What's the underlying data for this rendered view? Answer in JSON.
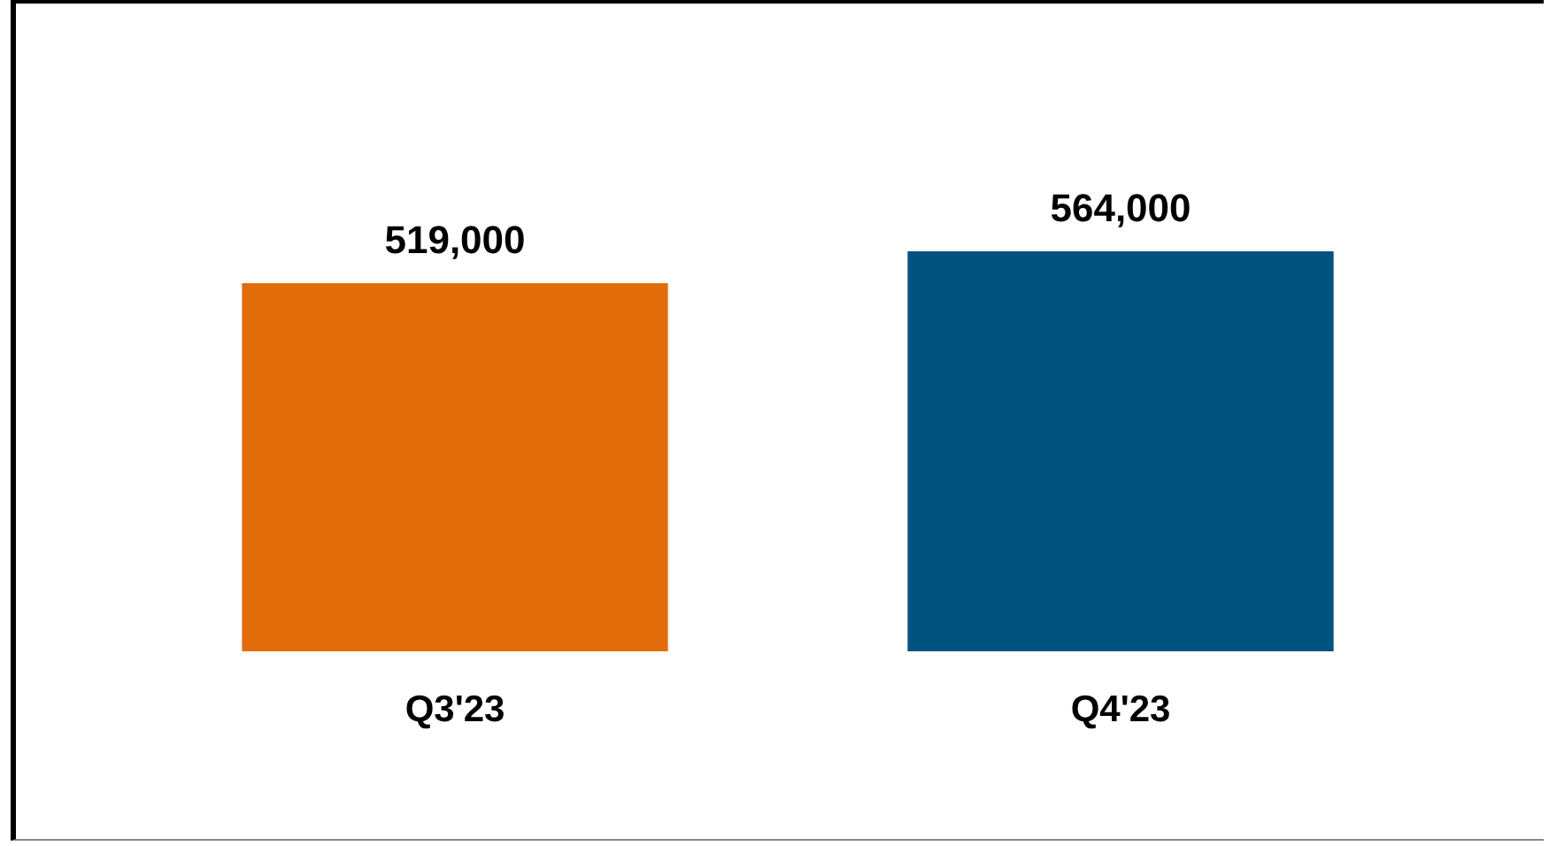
{
  "chart_data": {
    "type": "bar",
    "categories": [
      "Q3'23",
      "Q4'23"
    ],
    "values": [
      519000,
      564000
    ],
    "value_labels": [
      "519,000",
      "564,000"
    ],
    "colors": [
      "#e36c0a",
      "#00537e"
    ],
    "grid": false,
    "legend": false
  }
}
